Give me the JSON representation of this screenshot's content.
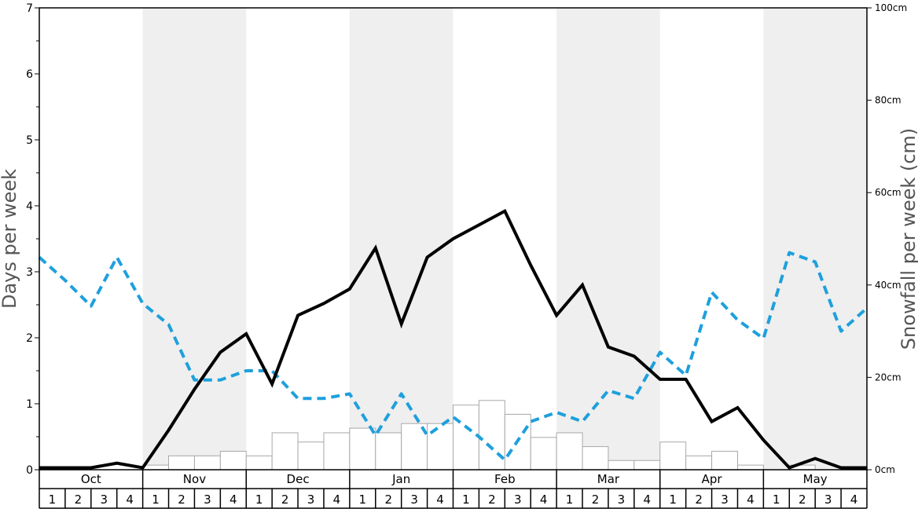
{
  "chart_data": {
    "type": "line+bar",
    "months": [
      "Oct",
      "Nov",
      "Dec",
      "Jan",
      "Feb",
      "Mar",
      "Apr",
      "May"
    ],
    "weeks": [
      "1",
      "2",
      "3",
      "4"
    ],
    "ylabel_left": "Days per week",
    "ylabel_right": "Snowfall per week (cm)",
    "ylim_left": [
      0,
      7
    ],
    "ylim_right": [
      0,
      100
    ],
    "yticks_left": [
      "0",
      "1",
      "2",
      "3",
      "4",
      "5",
      "6",
      "7"
    ],
    "yticks_right": [
      "0cm",
      "20cm",
      "40cm",
      "60cm",
      "80cm",
      "100cm"
    ],
    "alternate_month_shading": true,
    "series": [
      {
        "style": "solid black line",
        "axis": "left",
        "values": [
          0.03,
          0.03,
          0.03,
          0.1,
          0.03,
          0.6,
          1.22,
          1.78,
          2.06,
          1.3,
          2.34,
          2.52,
          2.74,
          3.36,
          2.21,
          3.22,
          3.5,
          3.71,
          3.92,
          3.1,
          2.34,
          2.8,
          1.86,
          1.72,
          1.37,
          1.37,
          0.73,
          0.94,
          0.45,
          0.03,
          0.17,
          0.03,
          0.03
        ]
      },
      {
        "style": "dashed blue line",
        "axis": "left",
        "color": "#1ea0dc",
        "values": [
          3.22,
          2.87,
          2.48,
          3.22,
          2.52,
          2.2,
          1.36,
          1.36,
          1.5,
          1.5,
          1.08,
          1.08,
          1.15,
          0.52,
          1.15,
          0.52,
          0.8,
          0.5,
          0.15,
          0.73,
          0.87,
          0.73,
          1.2,
          1.08,
          1.78,
          1.43,
          2.69,
          2.27,
          1.99,
          3.29,
          3.15,
          2.1,
          2.45
        ]
      },
      {
        "style": "white bars",
        "axis": "right",
        "unit": "cm",
        "values": [
          0,
          0,
          0,
          0,
          1,
          3,
          3,
          4,
          3,
          8,
          6,
          8,
          9,
          8,
          10,
          10,
          14,
          15,
          12,
          7,
          8,
          5,
          2,
          2,
          6,
          3,
          4,
          1,
          0,
          1,
          0,
          0
        ]
      }
    ]
  },
  "colors": {
    "shade": "#efefef",
    "dashed_line": "#1ea0dc",
    "solid_line": "#000000",
    "bar_fill": "#ffffff",
    "bar_stroke": "#a8a8a8"
  }
}
